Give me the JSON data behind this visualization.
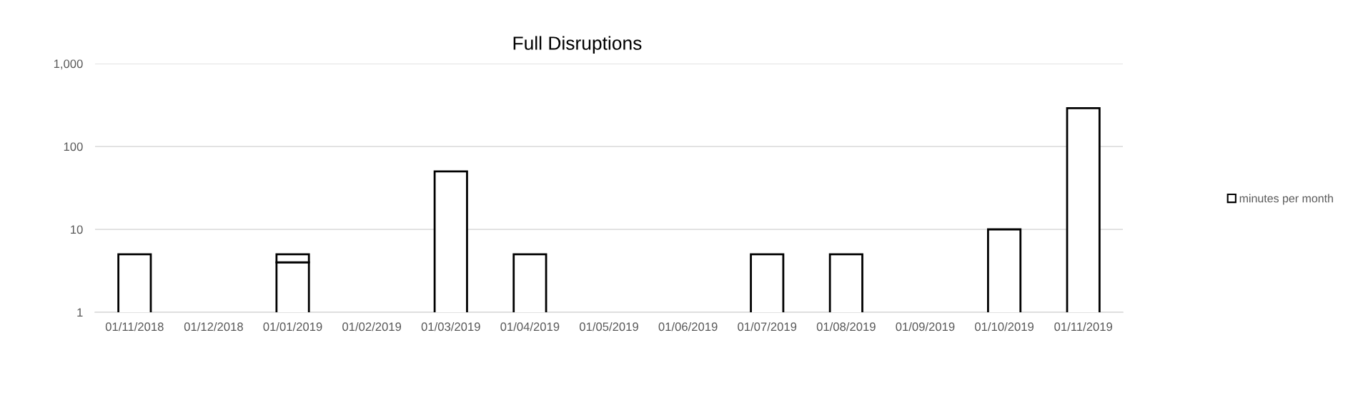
{
  "chart_data": {
    "type": "bar",
    "title": "Full Disruptions",
    "categories": [
      "01/11/2018",
      "01/12/2018",
      "01/01/2019",
      "01/02/2019",
      "01/03/2019",
      "01/04/2019",
      "01/05/2019",
      "01/06/2019",
      "01/07/2019",
      "01/08/2019",
      "01/09/2019",
      "01/10/2019",
      "01/11/2019"
    ],
    "series": [
      {
        "name": "minutes per month",
        "color": "#ffffff",
        "values": [
          5,
          null,
          4,
          null,
          50,
          5,
          null,
          null,
          5,
          5,
          null,
          10,
          290
        ]
      },
      {
        "color": "#ffffff",
        "values": [
          null,
          null,
          1,
          null,
          null,
          null,
          null,
          null,
          null,
          null,
          null,
          null,
          null
        ]
      }
    ],
    "stacked": true,
    "log": "y",
    "ylim": [
      1,
      1000
    ],
    "yticks": [
      1,
      10,
      100,
      {
        "value": 1000,
        "label": "1,000"
      }
    ],
    "grid": "y",
    "legend": "right"
  }
}
